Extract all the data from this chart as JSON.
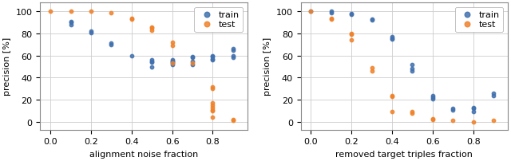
{
  "left": {
    "xlabel": "alignment noise fraction",
    "ylabel": "precision [%]",
    "xlim": [
      -0.05,
      0.97
    ],
    "ylim": [
      -7,
      108
    ],
    "xticks": [
      0.0,
      0.2,
      0.4,
      0.6,
      0.8
    ],
    "yticks": [
      0,
      20,
      40,
      60,
      80,
      100
    ],
    "train_x": [
      0.1,
      0.1,
      0.1,
      0.2,
      0.2,
      0.3,
      0.3,
      0.4,
      0.5,
      0.5,
      0.5,
      0.5,
      0.6,
      0.6,
      0.6,
      0.6,
      0.6,
      0.7,
      0.7,
      0.7,
      0.7,
      0.8,
      0.8,
      0.8,
      0.8,
      0.9,
      0.9,
      0.9,
      0.9
    ],
    "train_y": [
      91,
      90,
      88,
      82,
      81,
      71,
      70,
      60,
      56,
      55,
      54,
      50,
      56,
      55,
      55,
      53,
      52,
      59,
      58,
      55,
      52,
      60,
      59,
      57,
      56,
      66,
      65,
      60,
      58
    ],
    "test_x": [
      0.0,
      0.1,
      0.2,
      0.3,
      0.4,
      0.4,
      0.5,
      0.5,
      0.5,
      0.6,
      0.6,
      0.6,
      0.7,
      0.8,
      0.8,
      0.8,
      0.8,
      0.8,
      0.8,
      0.8,
      0.8,
      0.9,
      0.9
    ],
    "test_y": [
      100,
      100,
      100,
      99,
      94,
      93,
      86,
      85,
      83,
      72,
      69,
      53,
      53,
      32,
      30,
      17,
      15,
      13,
      11,
      10,
      4,
      2,
      1
    ]
  },
  "right": {
    "xlabel": "removed target triples fraction",
    "ylabel": "precision [%]",
    "xlim": [
      -0.05,
      0.97
    ],
    "ylim": [
      -7,
      108
    ],
    "xticks": [
      0.0,
      0.2,
      0.4,
      0.6,
      0.8
    ],
    "yticks": [
      0,
      20,
      40,
      60,
      80,
      100
    ],
    "train_x": [
      0.0,
      0.1,
      0.1,
      0.2,
      0.2,
      0.3,
      0.3,
      0.4,
      0.4,
      0.4,
      0.5,
      0.5,
      0.5,
      0.6,
      0.6,
      0.6,
      0.7,
      0.7,
      0.8,
      0.8,
      0.8,
      0.9,
      0.9
    ],
    "train_y": [
      100,
      100,
      99,
      98,
      97,
      93,
      92,
      77,
      76,
      75,
      52,
      48,
      46,
      24,
      22,
      21,
      12,
      11,
      13,
      12,
      9,
      26,
      24
    ],
    "test_x": [
      0.0,
      0.1,
      0.1,
      0.2,
      0.2,
      0.2,
      0.3,
      0.3,
      0.4,
      0.4,
      0.4,
      0.5,
      0.5,
      0.6,
      0.6,
      0.7,
      0.8,
      0.9
    ],
    "test_y": [
      100,
      94,
      93,
      80,
      79,
      74,
      49,
      46,
      24,
      23,
      9,
      9,
      8,
      3,
      2,
      1,
      0,
      1
    ]
  },
  "train_color": "#4171ae",
  "test_color": "#f0822a",
  "marker_size": 10,
  "alpha": 0.85,
  "legend_labels": [
    "train",
    "test"
  ],
  "tick_fontsize": 8,
  "label_fontsize": 8,
  "legend_fontsize": 8
}
